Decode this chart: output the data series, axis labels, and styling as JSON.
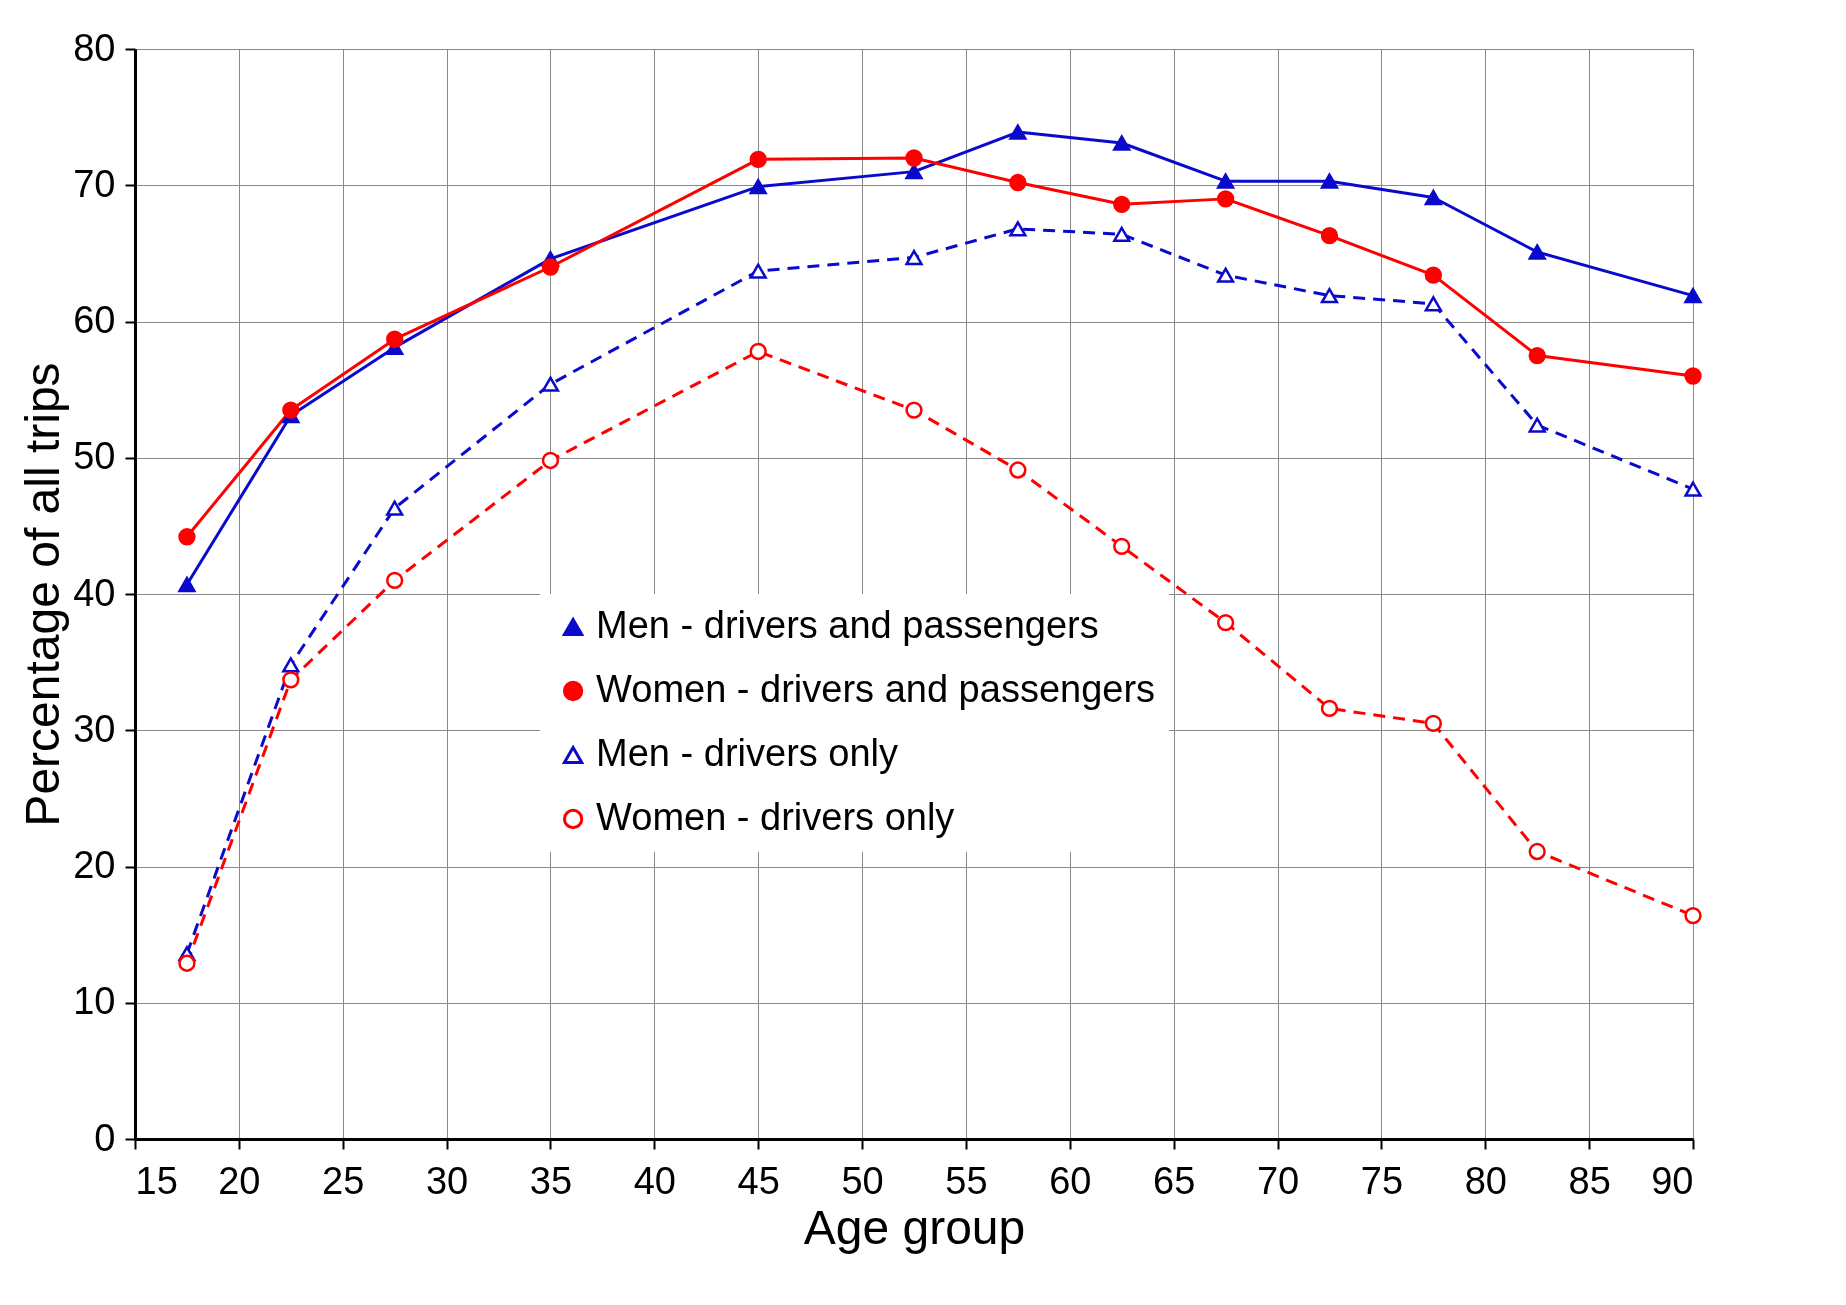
{
  "chart_data": {
    "type": "line",
    "xlabel": "Age group",
    "ylabel": "Percentage of all trips",
    "x": [
      17.5,
      22.5,
      27.5,
      35,
      45,
      52.5,
      57.5,
      62.5,
      67.5,
      72.5,
      77.5,
      82.5,
      90
    ],
    "series": [
      {
        "name": "Men - drivers and passengers",
        "color": "#0a0acd",
        "marker": "triangle",
        "line_style": "solid",
        "values": [
          40.7,
          53.1,
          58.1,
          64.6,
          69.9,
          71.0,
          73.9,
          73.1,
          70.3,
          70.3,
          69.1,
          65.1,
          61.9
        ]
      },
      {
        "name": "Women - drivers and passengers",
        "color": "#ff0000",
        "marker": "circle",
        "line_style": "solid",
        "values": [
          44.2,
          53.5,
          58.7,
          64.0,
          71.9,
          72.0,
          70.2,
          68.6,
          69.0,
          66.3,
          63.4,
          57.5,
          56.0
        ]
      },
      {
        "name": "Men - drivers only",
        "color": "#0a0acd",
        "marker": "triangle",
        "line_style": "dashed",
        "values": [
          13.6,
          34.8,
          46.3,
          55.4,
          63.7,
          64.7,
          66.8,
          66.4,
          63.4,
          61.9,
          61.3,
          52.4,
          47.7
        ]
      },
      {
        "name": "Women - drivers only",
        "color": "#ff0000",
        "marker": "circle",
        "line_style": "dashed",
        "values": [
          12.9,
          33.7,
          41.0,
          49.8,
          57.8,
          53.5,
          49.1,
          43.5,
          37.9,
          31.6,
          30.5,
          21.1,
          16.4
        ]
      }
    ],
    "xlim": [
      15,
      90
    ],
    "xticks": [
      15,
      20,
      25,
      30,
      35,
      40,
      45,
      50,
      55,
      60,
      65,
      70,
      75,
      80,
      85,
      90
    ],
    "ylim": [
      0,
      80
    ],
    "yticks": [
      0,
      10,
      20,
      30,
      40,
      50,
      60,
      70,
      80
    ],
    "grid": true,
    "legend": "center"
  }
}
